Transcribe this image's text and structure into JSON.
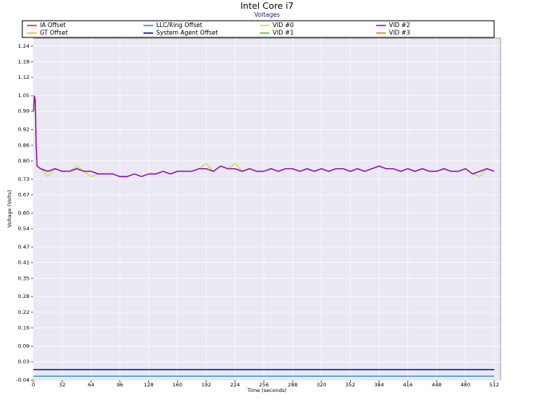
{
  "chart_data": {
    "type": "line",
    "title": "Intel Core i7",
    "subtitle": "Voltages",
    "x_label": "Time (seconds)",
    "y_label": "Voltage (Volts)",
    "x": [
      0,
      1,
      2,
      3,
      4,
      8,
      16,
      24,
      32,
      40,
      48,
      56,
      64,
      72,
      80,
      88,
      96,
      104,
      112,
      120,
      128,
      136,
      144,
      152,
      160,
      168,
      176,
      184,
      192,
      200,
      208,
      216,
      224,
      232,
      240,
      248,
      256,
      264,
      272,
      280,
      288,
      296,
      304,
      312,
      320,
      328,
      336,
      344,
      352,
      360,
      368,
      376,
      384,
      392,
      400,
      408,
      416,
      424,
      432,
      440,
      448,
      456,
      464,
      472,
      480,
      488,
      496,
      504,
      512
    ],
    "xlim": [
      0,
      519
    ],
    "xticks": [
      0,
      32,
      64,
      96,
      128,
      160,
      192,
      224,
      256,
      288,
      320,
      352,
      384,
      416,
      448,
      480,
      512
    ],
    "ylim": [
      -0.04,
      1.27
    ],
    "yticks": [
      -0.04,
      0.03,
      0.09,
      0.16,
      0.22,
      0.28,
      0.35,
      0.41,
      0.47,
      0.54,
      {
        "value": 0.6,
        "label": "0.60"
      },
      0.67,
      0.73,
      {
        "value": 0.8,
        "label": "0.80"
      },
      0.86,
      0.92,
      0.99,
      1.05,
      1.12,
      1.18,
      1.24
    ],
    "grid": true,
    "series": [
      {
        "name": "IA Offset",
        "color": "#e02020",
        "values": [
          0,
          0,
          0,
          0,
          0,
          0,
          0,
          0,
          0,
          0,
          0,
          0,
          0,
          0,
          0,
          0,
          0,
          0,
          0,
          0,
          0,
          0,
          0,
          0,
          0,
          0,
          0,
          0,
          0,
          0,
          0,
          0,
          0,
          0,
          0,
          0,
          0,
          0,
          0,
          0,
          0,
          0,
          0,
          0,
          0,
          0,
          0,
          0,
          0,
          0,
          0,
          0,
          0,
          0,
          0,
          0,
          0,
          0,
          0,
          0,
          0,
          0,
          0,
          0,
          0,
          0,
          0,
          0,
          0
        ]
      },
      {
        "name": "LLC/Ring Offset",
        "color": "#2090b0",
        "values": [
          -0.025,
          -0.025,
          -0.025,
          -0.025,
          -0.025,
          -0.025,
          -0.025,
          -0.025,
          -0.025,
          -0.025,
          -0.025,
          -0.025,
          -0.025,
          -0.025,
          -0.025,
          -0.025,
          -0.025,
          -0.025,
          -0.025,
          -0.025,
          -0.025,
          -0.025,
          -0.025,
          -0.025,
          -0.025,
          -0.025,
          -0.025,
          -0.025,
          -0.025,
          -0.025,
          -0.025,
          -0.025,
          -0.025,
          -0.025,
          -0.025,
          -0.025,
          -0.025,
          -0.025,
          -0.025,
          -0.025,
          -0.025,
          -0.025,
          -0.025,
          -0.025,
          -0.025,
          -0.025,
          -0.025,
          -0.025,
          -0.025,
          -0.025,
          -0.025,
          -0.025,
          -0.025,
          -0.025,
          -0.025,
          -0.025,
          -0.025,
          -0.025,
          -0.025,
          -0.025,
          -0.025,
          -0.025,
          -0.025,
          -0.025,
          -0.025,
          -0.025,
          -0.025,
          -0.025,
          -0.025
        ]
      },
      {
        "name": "VID #0",
        "color": "#c8e040",
        "values": [
          0.99,
          1.05,
          1.03,
          0.85,
          0.78,
          0.77,
          0.74,
          0.77,
          0.76,
          0.76,
          0.78,
          0.76,
          0.74,
          0.75,
          0.75,
          0.75,
          0.74,
          0.74,
          0.75,
          0.74,
          0.75,
          0.75,
          0.76,
          0.75,
          0.76,
          0.76,
          0.76,
          0.77,
          0.79,
          0.76,
          0.78,
          0.77,
          0.79,
          0.76,
          0.77,
          0.76,
          0.76,
          0.77,
          0.76,
          0.77,
          0.77,
          0.76,
          0.77,
          0.76,
          0.77,
          0.76,
          0.77,
          0.77,
          0.76,
          0.77,
          0.76,
          0.77,
          0.78,
          0.77,
          0.77,
          0.76,
          0.77,
          0.76,
          0.77,
          0.76,
          0.76,
          0.77,
          0.76,
          0.76,
          0.77,
          0.75,
          0.74,
          0.77,
          0.76
        ]
      },
      {
        "name": "VID #2",
        "color": "#9900cc",
        "values": [
          0.99,
          1.05,
          1.03,
          0.85,
          0.78,
          0.77,
          0.76,
          0.77,
          0.76,
          0.76,
          0.77,
          0.76,
          0.76,
          0.75,
          0.75,
          0.75,
          0.74,
          0.74,
          0.75,
          0.74,
          0.75,
          0.75,
          0.76,
          0.75,
          0.76,
          0.76,
          0.76,
          0.77,
          0.77,
          0.76,
          0.78,
          0.77,
          0.77,
          0.76,
          0.77,
          0.76,
          0.76,
          0.77,
          0.76,
          0.77,
          0.77,
          0.76,
          0.77,
          0.76,
          0.77,
          0.76,
          0.77,
          0.77,
          0.76,
          0.77,
          0.76,
          0.77,
          0.78,
          0.77,
          0.77,
          0.76,
          0.77,
          0.76,
          0.77,
          0.76,
          0.76,
          0.77,
          0.76,
          0.76,
          0.77,
          0.75,
          0.76,
          0.77,
          0.76
        ]
      },
      {
        "name": "GT Offset",
        "color": "#f0b030",
        "values": [
          0,
          0,
          0,
          0,
          0,
          0,
          0,
          0,
          0,
          0,
          0,
          0,
          0,
          0,
          0,
          0,
          0,
          0,
          0,
          0,
          0,
          0,
          0,
          0,
          0,
          0,
          0,
          0,
          0,
          0,
          0,
          0,
          0,
          0,
          0,
          0,
          0,
          0,
          0,
          0,
          0,
          0,
          0,
          0,
          0,
          0,
          0,
          0,
          0,
          0,
          0,
          0,
          0,
          0,
          0,
          0,
          0,
          0,
          0,
          0,
          0,
          0,
          0,
          0,
          0,
          0,
          0,
          0,
          0
        ]
      },
      {
        "name": "System Agent Offset",
        "color": "#000080",
        "values": [
          0,
          0,
          0,
          0,
          0,
          0,
          0,
          0,
          0,
          0,
          0,
          0,
          0,
          0,
          0,
          0,
          0,
          0,
          0,
          0,
          0,
          0,
          0,
          0,
          0,
          0,
          0,
          0,
          0,
          0,
          0,
          0,
          0,
          0,
          0,
          0,
          0,
          0,
          0,
          0,
          0,
          0,
          0,
          0,
          0,
          0,
          0,
          0,
          0,
          0,
          0,
          0,
          0,
          0,
          0,
          0,
          0,
          0,
          0,
          0,
          0,
          0,
          0,
          0,
          0,
          0,
          0,
          0,
          0
        ]
      },
      {
        "name": "VID #1",
        "color": "#40c040",
        "values": [
          0.99,
          1.05,
          1.03,
          0.85,
          0.78,
          0.77,
          0.76,
          0.77,
          0.76,
          0.76,
          0.77,
          0.76,
          0.76,
          0.75,
          0.75,
          0.75,
          0.74,
          0.74,
          0.75,
          0.74,
          0.75,
          0.75,
          0.76,
          0.75,
          0.76,
          0.76,
          0.76,
          0.77,
          0.77,
          0.76,
          0.78,
          0.77,
          0.77,
          0.76,
          0.77,
          0.76,
          0.76,
          0.77,
          0.76,
          0.77,
          0.77,
          0.76,
          0.77,
          0.76,
          0.77,
          0.76,
          0.77,
          0.77,
          0.76,
          0.77,
          0.76,
          0.77,
          0.78,
          0.77,
          0.77,
          0.76,
          0.77,
          0.76,
          0.77,
          0.76,
          0.76,
          0.77,
          0.76,
          0.76,
          0.77,
          0.75,
          0.76,
          0.77,
          0.76
        ]
      },
      {
        "name": "VID #3",
        "color": "#c08000",
        "values": [
          0.99,
          1.05,
          1.03,
          0.85,
          0.78,
          0.77,
          0.76,
          0.77,
          0.76,
          0.76,
          0.77,
          0.76,
          0.76,
          0.75,
          0.75,
          0.75,
          0.74,
          0.74,
          0.75,
          0.74,
          0.75,
          0.75,
          0.76,
          0.75,
          0.76,
          0.76,
          0.76,
          0.77,
          0.77,
          0.76,
          0.78,
          0.77,
          0.77,
          0.76,
          0.77,
          0.76,
          0.76,
          0.77,
          0.76,
          0.77,
          0.77,
          0.76,
          0.77,
          0.76,
          0.77,
          0.76,
          0.77,
          0.77,
          0.76,
          0.77,
          0.76,
          0.77,
          0.78,
          0.77,
          0.77,
          0.76,
          0.77,
          0.76,
          0.77,
          0.76,
          0.76,
          0.77,
          0.76,
          0.76,
          0.77,
          0.75,
          0.76,
          0.77,
          0.76
        ]
      }
    ]
  }
}
